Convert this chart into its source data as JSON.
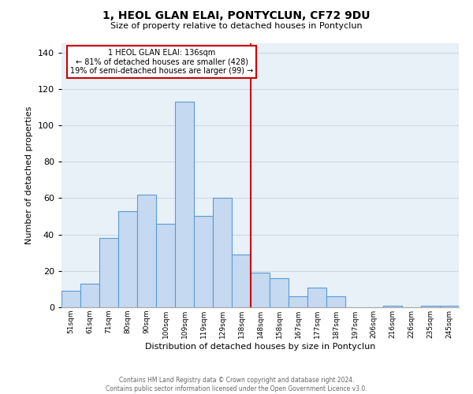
{
  "title": "1, HEOL GLAN ELAI, PONTYCLUN, CF72 9DU",
  "subtitle": "Size of property relative to detached houses in Pontyclun",
  "xlabel": "Distribution of detached houses by size in Pontyclun",
  "ylabel": "Number of detached properties",
  "bar_labels": [
    "51sqm",
    "61sqm",
    "71sqm",
    "80sqm",
    "90sqm",
    "100sqm",
    "109sqm",
    "119sqm",
    "129sqm",
    "138sqm",
    "148sqm",
    "158sqm",
    "167sqm",
    "177sqm",
    "187sqm",
    "197sqm",
    "206sqm",
    "216sqm",
    "226sqm",
    "235sqm",
    "245sqm"
  ],
  "bar_values": [
    9,
    13,
    38,
    53,
    62,
    46,
    113,
    50,
    60,
    29,
    19,
    16,
    6,
    11,
    6,
    0,
    0,
    1,
    0,
    1,
    1
  ],
  "bar_color": "#c5d9f0",
  "bar_edge_color": "#5b9bd5",
  "ylim": [
    0,
    145
  ],
  "yticks": [
    0,
    20,
    40,
    60,
    80,
    100,
    120,
    140
  ],
  "vline_x": 9.5,
  "vline_color": "#cc0000",
  "annotation_title": "1 HEOL GLAN ELAI: 136sqm",
  "annotation_line1": "← 81% of detached houses are smaller (428)",
  "annotation_line2": "19% of semi-detached houses are larger (99) →",
  "footer1": "Contains HM Land Registry data © Crown copyright and database right 2024.",
  "footer2": "Contains public sector information licensed under the Open Government Licence v3.0.",
  "bg_color": "#ffffff",
  "grid_color": "#d0d8e4"
}
